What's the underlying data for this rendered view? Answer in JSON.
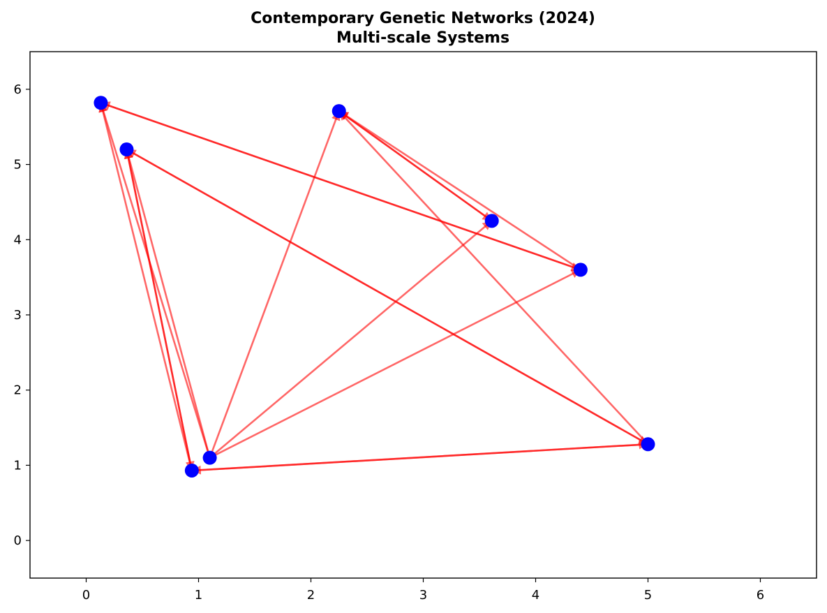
{
  "chart_data": {
    "type": "scatter",
    "title_lines": [
      "Contemporary Genetic Networks (2024)",
      "Multi-scale Systems"
    ],
    "xlabel": "",
    "ylabel": "",
    "xlim": [
      -0.5,
      6.5
    ],
    "ylim": [
      -0.5,
      6.5
    ],
    "xticks": [
      0,
      1,
      2,
      3,
      4,
      5,
      6
    ],
    "yticks": [
      0,
      1,
      2,
      3,
      4,
      5,
      6
    ],
    "grid": false,
    "colors": {
      "node": "#0000ff",
      "edge": "#ff0000"
    },
    "nodes": [
      {
        "id": "n0",
        "x": 0.13,
        "y": 5.82
      },
      {
        "id": "n1",
        "x": 0.36,
        "y": 5.2
      },
      {
        "id": "n2",
        "x": 2.25,
        "y": 5.71
      },
      {
        "id": "n3",
        "x": 3.61,
        "y": 4.25
      },
      {
        "id": "n4",
        "x": 4.4,
        "y": 3.6
      },
      {
        "id": "n5",
        "x": 5.0,
        "y": 1.28
      },
      {
        "id": "n6",
        "x": 1.1,
        "y": 1.1
      },
      {
        "id": "n7",
        "x": 0.94,
        "y": 0.93
      }
    ],
    "edges": [
      {
        "from": "n4",
        "to": "n0"
      },
      {
        "from": "n7",
        "to": "n0"
      },
      {
        "from": "n6",
        "to": "n0"
      },
      {
        "from": "n5",
        "to": "n1"
      },
      {
        "from": "n6",
        "to": "n1"
      },
      {
        "from": "n7",
        "to": "n1"
      },
      {
        "from": "n6",
        "to": "n2"
      },
      {
        "from": "n3",
        "to": "n2"
      },
      {
        "from": "n4",
        "to": "n2"
      },
      {
        "from": "n5",
        "to": "n2"
      },
      {
        "from": "n6",
        "to": "n3"
      },
      {
        "from": "n2",
        "to": "n3"
      },
      {
        "from": "n6",
        "to": "n4"
      },
      {
        "from": "n0",
        "to": "n4"
      },
      {
        "from": "n1",
        "to": "n5"
      },
      {
        "from": "n7",
        "to": "n5"
      },
      {
        "from": "n5",
        "to": "n7"
      },
      {
        "from": "n1",
        "to": "n7"
      }
    ]
  }
}
